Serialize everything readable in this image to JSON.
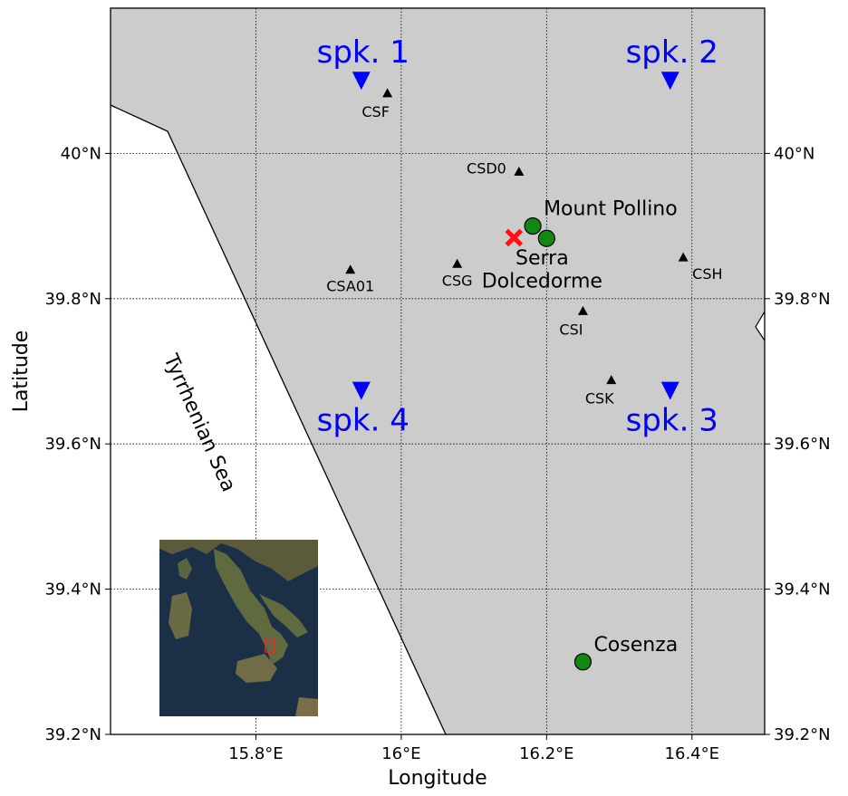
{
  "axes": {
    "xlabel": "Longitude",
    "ylabel": "Latitude",
    "xlim": [
      15.6,
      16.5
    ],
    "ylim": [
      39.2,
      40.2
    ],
    "x_ticks": [
      {
        "value": 15.8,
        "label": "15.8°E"
      },
      {
        "value": 16.0,
        "label": "16°E"
      },
      {
        "value": 16.2,
        "label": "16.2°E"
      },
      {
        "value": 16.4,
        "label": "16.4°E"
      }
    ],
    "y_ticks": [
      {
        "value": 39.2,
        "label": "39.2°N"
      },
      {
        "value": 39.4,
        "label": "39.4°N"
      },
      {
        "value": 39.6,
        "label": "39.6°N"
      },
      {
        "value": 39.8,
        "label": "39.8°N"
      },
      {
        "value": 40.0,
        "label": "40°N"
      }
    ],
    "grid": true
  },
  "colors": {
    "land": "#cccccc",
    "sea": "#ffffff",
    "speaker": "#0000ff",
    "place": "#118811",
    "epicenter": "#ff1111",
    "station": "#000000"
  },
  "speakers": [
    {
      "id": "spk1",
      "label": "spk. 1",
      "lon": 15.945,
      "lat": 40.1,
      "label_pos": "above"
    },
    {
      "id": "spk2",
      "label": "spk. 2",
      "lon": 16.37,
      "lat": 40.1,
      "label_pos": "above"
    },
    {
      "id": "spk3",
      "label": "spk. 3",
      "lon": 16.37,
      "lat": 39.673,
      "label_pos": "below"
    },
    {
      "id": "spk4",
      "label": "spk. 4",
      "lon": 15.945,
      "lat": 39.673,
      "label_pos": "below"
    }
  ],
  "stations": [
    {
      "id": "csf",
      "label": "CSF",
      "lon": 15.981,
      "lat": 40.083,
      "label_pos": "below-left"
    },
    {
      "id": "csd0",
      "label": "CSD0",
      "lon": 16.162,
      "lat": 39.975,
      "label_pos": "left"
    },
    {
      "id": "csa01",
      "label": "CSA01",
      "lon": 15.93,
      "lat": 39.84,
      "label_pos": "below"
    },
    {
      "id": "csg",
      "label": "CSG",
      "lon": 16.077,
      "lat": 39.848,
      "label_pos": "below"
    },
    {
      "id": "csh",
      "label": "CSH",
      "lon": 16.388,
      "lat": 39.857,
      "label_pos": "below-right"
    },
    {
      "id": "csi",
      "label": "CSI",
      "lon": 16.25,
      "lat": 39.783,
      "label_pos": "below-left"
    },
    {
      "id": "csk",
      "label": "CSK",
      "lon": 16.289,
      "lat": 39.688,
      "label_pos": "below-left"
    }
  ],
  "places": [
    {
      "id": "mount-pollino",
      "label": "Mount Pollino",
      "lon": 16.181,
      "lat": 39.9,
      "label_pos": "upper-right"
    },
    {
      "id": "serra-dolcedorme",
      "label": "Serra\nDolcedorme",
      "lon": 16.2,
      "lat": 39.883,
      "label_pos": "below"
    },
    {
      "id": "cosenza",
      "label": "Cosenza",
      "lon": 16.25,
      "lat": 39.3,
      "label_pos": "upper-right"
    }
  ],
  "epicenter": {
    "lon": 16.155,
    "lat": 39.884
  },
  "sea_label": "Tyrrhenian Sea"
}
